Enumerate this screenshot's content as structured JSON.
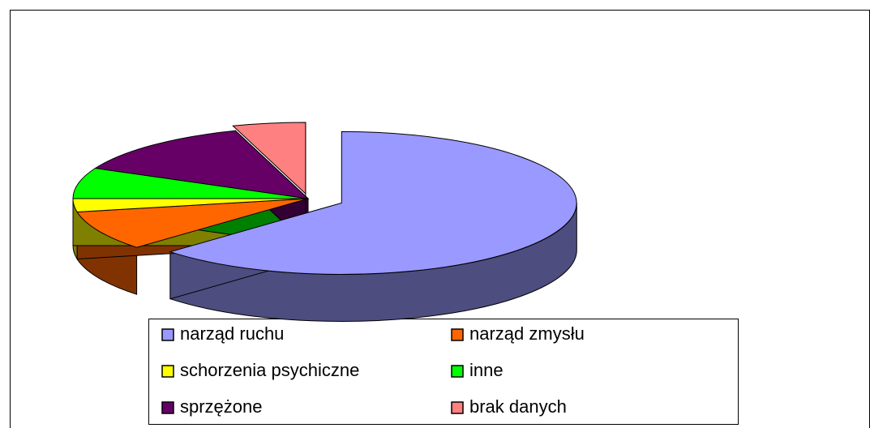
{
  "chart_data": {
    "type": "pie",
    "categories": [
      "narząd ruchu",
      "narząd zmysłu",
      "schorzenia psychiczne",
      "inne",
      "sprzężone",
      "brak danych"
    ],
    "values": [
      63,
      9,
      3,
      7,
      13,
      5
    ],
    "colors": [
      "#9999ff",
      "#ff6600",
      "#ffff00",
      "#00ff00",
      "#660066",
      "#ff8080"
    ]
  }
}
